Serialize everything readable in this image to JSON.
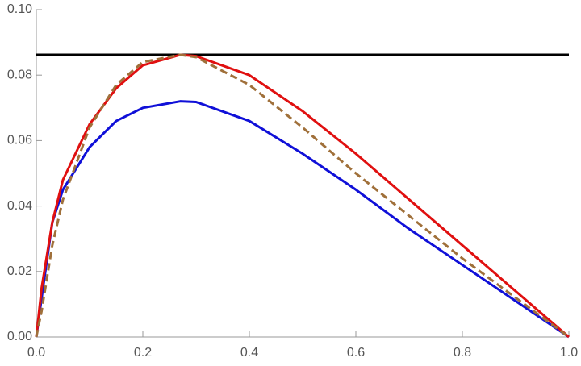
{
  "chart_data": {
    "type": "line",
    "x": [
      0,
      0.01,
      0.03,
      0.05,
      0.1,
      0.15,
      0.2,
      0.27,
      0.3,
      0.4,
      0.5,
      0.6,
      0.7,
      0.8,
      0.9,
      1.0
    ],
    "series": [
      {
        "color": "#000000",
        "dashed": false,
        "values": [
          0.0862,
          0.0862,
          0.0862,
          0.0862,
          0.0862,
          0.0862,
          0.0862,
          0.0862,
          0.0862,
          0.0862,
          0.0862,
          0.0862,
          0.0862,
          0.0862,
          0.0862,
          0.0862
        ]
      },
      {
        "color": "#1010d8",
        "dashed": false,
        "values": [
          0,
          0.012,
          0.035,
          0.045,
          0.058,
          0.066,
          0.07,
          0.072,
          0.0718,
          0.066,
          0.056,
          0.045,
          0.033,
          0.022,
          0.011,
          0
        ]
      },
      {
        "color": "#e01010",
        "dashed": false,
        "values": [
          0,
          0.015,
          0.035,
          0.048,
          0.065,
          0.076,
          0.083,
          0.0862,
          0.0858,
          0.08,
          0.069,
          0.056,
          0.042,
          0.028,
          0.014,
          0
        ]
      },
      {
        "color": "#a0703a",
        "dashed": true,
        "values": [
          0,
          0.008,
          0.028,
          0.042,
          0.064,
          0.077,
          0.084,
          0.0862,
          0.0855,
          0.077,
          0.064,
          0.05,
          0.037,
          0.024,
          0.012,
          0
        ]
      }
    ],
    "xlim": [
      0,
      1
    ],
    "ylim": [
      0,
      0.1
    ],
    "xticks": [
      {
        "value": 0,
        "label": "0.0"
      },
      0.2,
      0.4,
      0.6,
      0.8,
      {
        "value": 1,
        "label": "1.0"
      }
    ],
    "yticks": [
      {
        "value": 0,
        "label": "0.00"
      },
      {
        "value": 0.02,
        "label": "0.02"
      },
      {
        "value": 0.04,
        "label": "0.04"
      },
      {
        "value": 0.06,
        "label": "0.06"
      },
      {
        "value": 0.08,
        "label": "0.08"
      },
      {
        "value": 0.1,
        "label": "0.10"
      }
    ]
  }
}
